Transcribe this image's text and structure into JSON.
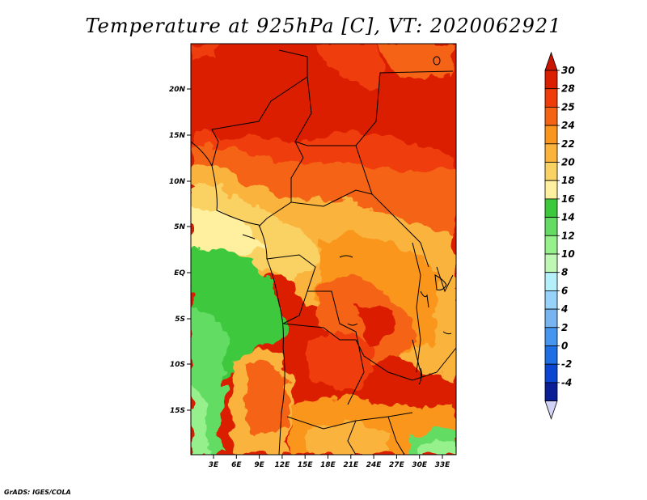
{
  "title": "Temperature at 925hPa [C], VT: 2020062921",
  "credit": "GrADS: IGES/COLA",
  "lat_ticks": [
    "20N",
    "15N",
    "10N",
    "5N",
    "EQ",
    "5S",
    "10S",
    "15S"
  ],
  "lon_ticks": [
    "3E",
    "6E",
    "9E",
    "12E",
    "15E",
    "18E",
    "21E",
    "24E",
    "27E",
    "30E",
    "33E"
  ],
  "colorbar": {
    "labels": [
      "30",
      "28",
      "25",
      "24",
      "22",
      "20",
      "18",
      "16",
      "14",
      "12",
      "10",
      "8",
      "6",
      "4",
      "2",
      "0",
      "-2",
      "-4"
    ],
    "colors": [
      "#dc1e00",
      "#f03c0a",
      "#f56414",
      "#fa961e",
      "#fab43c",
      "#fad264",
      "#fff0a0",
      "#3cc83c",
      "#64dc64",
      "#96f08c",
      "#bef8b4",
      "#b4f0fa",
      "#96d2fa",
      "#78b4f0",
      "#4696f0",
      "#1e6ee6",
      "#0a46d2",
      "#0a1e96"
    ],
    "top_arrow_color": "#c81400",
    "bottom_arrow_color": "#d2d2f5"
  }
}
